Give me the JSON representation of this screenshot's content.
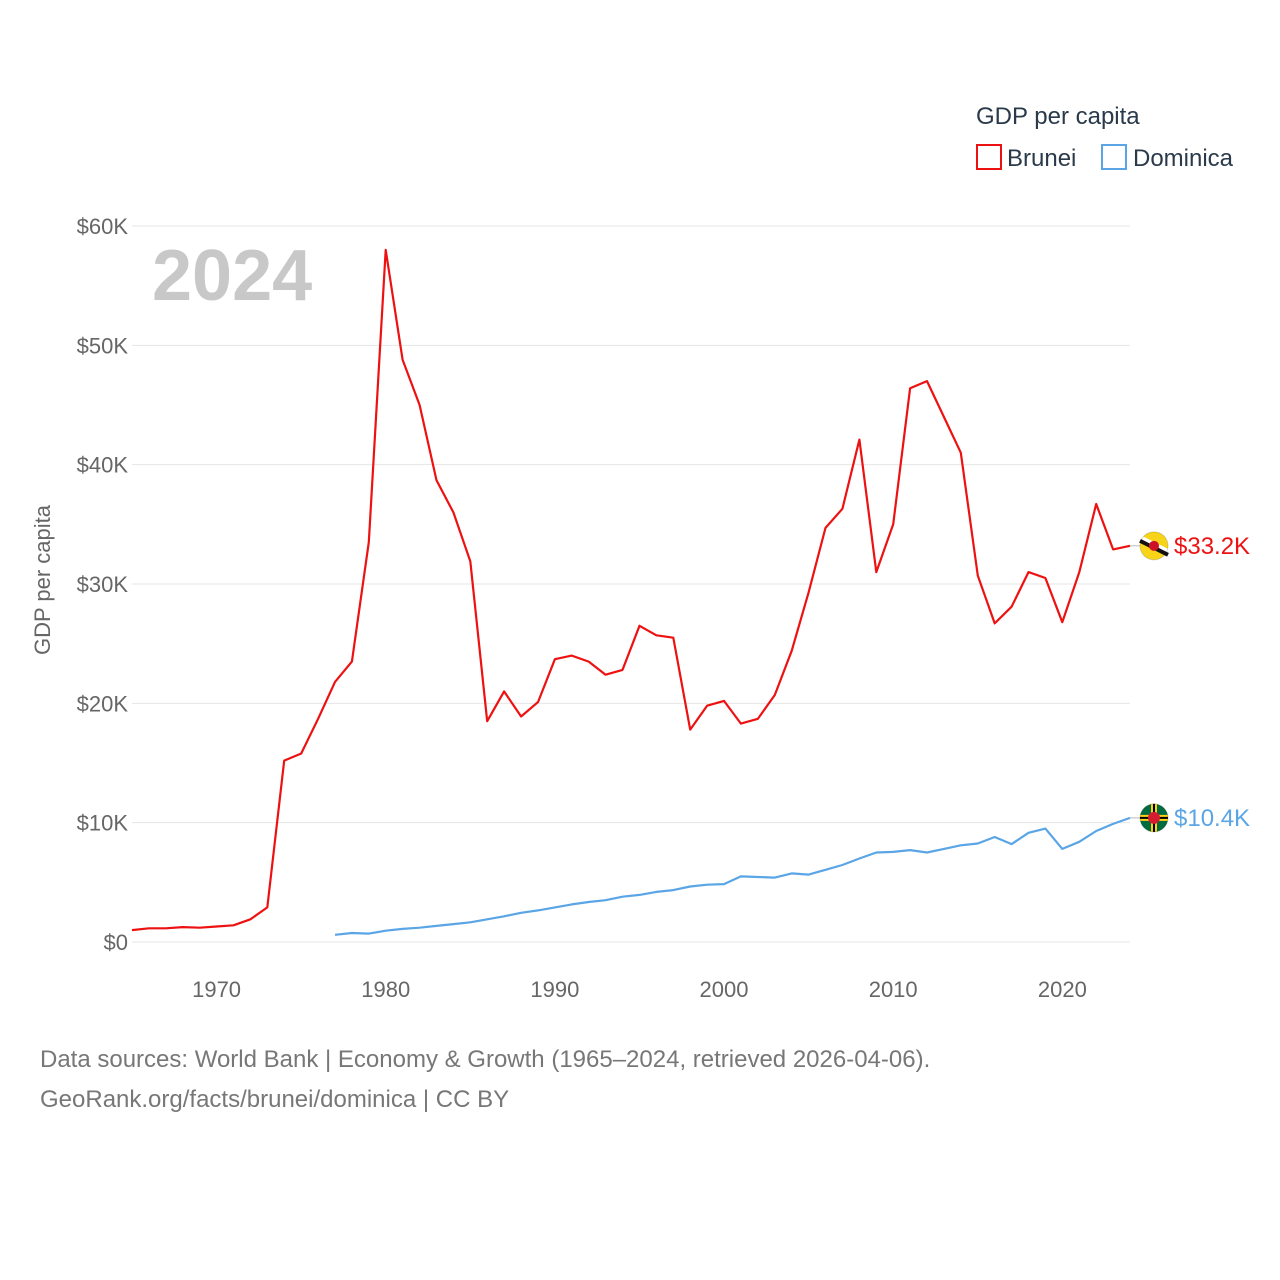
{
  "chart_data": {
    "type": "line",
    "ylabel": "GDP per capita",
    "year_watermark": "2024",
    "legend": {
      "title": "GDP per capita",
      "placement": "top-right"
    },
    "ylim": [
      0,
      60000
    ],
    "xlim": [
      1965,
      2024
    ],
    "y_ticks": [
      {
        "value": 0,
        "label": "$0"
      },
      {
        "value": 10000,
        "label": "$10K"
      },
      {
        "value": 20000,
        "label": "$20K"
      },
      {
        "value": 30000,
        "label": "$30K"
      },
      {
        "value": 40000,
        "label": "$40K"
      },
      {
        "value": 50000,
        "label": "$50K"
      },
      {
        "value": 60000,
        "label": "$60K"
      }
    ],
    "x_ticks": [
      {
        "value": 1970,
        "label": "1970"
      },
      {
        "value": 1980,
        "label": "1980"
      },
      {
        "value": 1990,
        "label": "1990"
      },
      {
        "value": 2000,
        "label": "2000"
      },
      {
        "value": 2010,
        "label": "2010"
      },
      {
        "value": 2020,
        "label": "2020"
      }
    ],
    "grid": true,
    "series": [
      {
        "name": "Brunei",
        "color": "#ee1111",
        "end_label": "$33.2K",
        "flag_icon": "brunei-flag-icon",
        "points": [
          [
            1965,
            1000
          ],
          [
            1966,
            1150
          ],
          [
            1967,
            1150
          ],
          [
            1968,
            1250
          ],
          [
            1969,
            1200
          ],
          [
            1970,
            1300
          ],
          [
            1971,
            1400
          ],
          [
            1972,
            1900
          ],
          [
            1973,
            2900
          ],
          [
            1974,
            15200
          ],
          [
            1975,
            15800
          ],
          [
            1976,
            18700
          ],
          [
            1977,
            21800
          ],
          [
            1978,
            23500
          ],
          [
            1979,
            33500
          ],
          [
            1980,
            58000
          ],
          [
            1981,
            48800
          ],
          [
            1982,
            45000
          ],
          [
            1983,
            38700
          ],
          [
            1984,
            36000
          ],
          [
            1985,
            31900
          ],
          [
            1986,
            18500
          ],
          [
            1987,
            21000
          ],
          [
            1988,
            18900
          ],
          [
            1989,
            20100
          ],
          [
            1990,
            23700
          ],
          [
            1991,
            24000
          ],
          [
            1992,
            23500
          ],
          [
            1993,
            22400
          ],
          [
            1994,
            22800
          ],
          [
            1995,
            26500
          ],
          [
            1996,
            25700
          ],
          [
            1997,
            25500
          ],
          [
            1998,
            17800
          ],
          [
            1999,
            19800
          ],
          [
            2000,
            20200
          ],
          [
            2001,
            18300
          ],
          [
            2002,
            18700
          ],
          [
            2003,
            20700
          ],
          [
            2004,
            24400
          ],
          [
            2005,
            29300
          ],
          [
            2006,
            34700
          ],
          [
            2007,
            36300
          ],
          [
            2008,
            42100
          ],
          [
            2009,
            31000
          ],
          [
            2010,
            35000
          ],
          [
            2011,
            46400
          ],
          [
            2012,
            47000
          ],
          [
            2013,
            44000
          ],
          [
            2014,
            41000
          ],
          [
            2015,
            30700
          ],
          [
            2016,
            26700
          ],
          [
            2017,
            28100
          ],
          [
            2018,
            31000
          ],
          [
            2019,
            30500
          ],
          [
            2020,
            26800
          ],
          [
            2021,
            31000
          ],
          [
            2022,
            36700
          ],
          [
            2023,
            32900
          ],
          [
            2024,
            33200
          ]
        ]
      },
      {
        "name": "Dominica",
        "color": "#5aa5e6",
        "end_label": "$10.4K",
        "flag_icon": "dominica-flag-icon",
        "points": [
          [
            1977,
            600
          ],
          [
            1978,
            750
          ],
          [
            1979,
            700
          ],
          [
            1980,
            950
          ],
          [
            1981,
            1100
          ],
          [
            1982,
            1200
          ],
          [
            1983,
            1350
          ],
          [
            1984,
            1500
          ],
          [
            1985,
            1650
          ],
          [
            1986,
            1900
          ],
          [
            1987,
            2150
          ],
          [
            1988,
            2450
          ],
          [
            1989,
            2650
          ],
          [
            1990,
            2900
          ],
          [
            1991,
            3150
          ],
          [
            1992,
            3350
          ],
          [
            1993,
            3500
          ],
          [
            1994,
            3800
          ],
          [
            1995,
            3950
          ],
          [
            1996,
            4200
          ],
          [
            1997,
            4350
          ],
          [
            1998,
            4650
          ],
          [
            1999,
            4800
          ],
          [
            2000,
            4850
          ],
          [
            2001,
            5500
          ],
          [
            2002,
            5450
          ],
          [
            2003,
            5400
          ],
          [
            2004,
            5750
          ],
          [
            2005,
            5650
          ],
          [
            2006,
            6050
          ],
          [
            2007,
            6450
          ],
          [
            2008,
            7000
          ],
          [
            2009,
            7500
          ],
          [
            2010,
            7550
          ],
          [
            2011,
            7700
          ],
          [
            2012,
            7500
          ],
          [
            2013,
            7800
          ],
          [
            2014,
            8100
          ],
          [
            2015,
            8250
          ],
          [
            2016,
            8800
          ],
          [
            2017,
            8200
          ],
          [
            2018,
            9150
          ],
          [
            2019,
            9500
          ],
          [
            2020,
            7800
          ],
          [
            2021,
            8400
          ],
          [
            2022,
            9300
          ],
          [
            2023,
            9900
          ],
          [
            2024,
            10400
          ]
        ]
      }
    ]
  },
  "footer": {
    "line1": "Data sources: World Bank | Economy & Growth (1965–2024, retrieved 2026-04-06).",
    "line2": "GeoRank.org/facts/brunei/dominica | CC BY"
  }
}
